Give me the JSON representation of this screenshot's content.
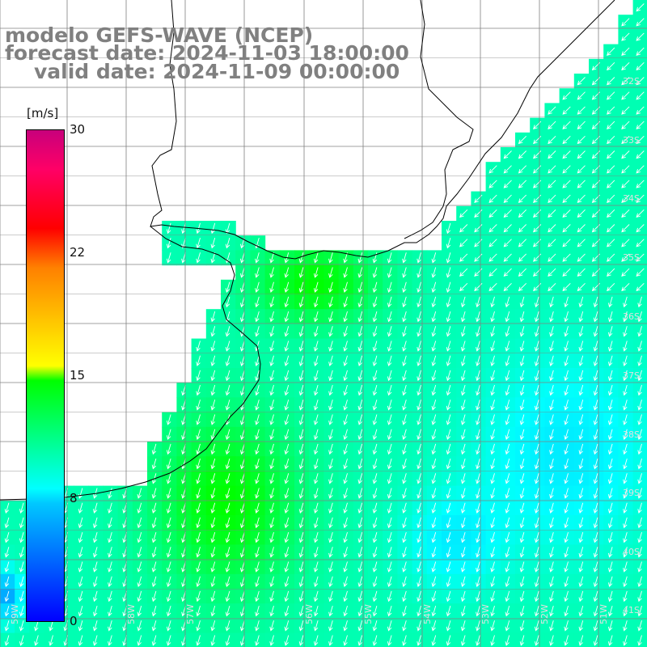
{
  "title": {
    "line1": "modelo GEFS-WAVE (NCEP)",
    "line2": "forecast date: 2024-11-03 18:00:00",
    "line3": "valid date: 2024-11-09 00:00:00"
  },
  "colorbar": {
    "unit": "[m/s]",
    "ticks": [
      "30",
      "22",
      "15",
      "8",
      "0"
    ],
    "tick_values": [
      30,
      22,
      15,
      8,
      0
    ],
    "colors": [
      "#0000ff",
      "#00c8ff",
      "#00ffff",
      "#00ff00",
      "#ffff00",
      "#ff8000",
      "#ff0000",
      "#ff0066",
      "#c8007c"
    ]
  },
  "map": {
    "lat_labels": [
      "32S",
      "33S",
      "34S",
      "35S",
      "36S",
      "37S",
      "38S",
      "39S",
      "40S",
      "41S"
    ],
    "lon_labels": [
      "59W",
      "58W",
      "57W",
      "56W",
      "55W",
      "54W",
      "53W",
      "52W",
      "51W"
    ],
    "land_color": "#ffffff",
    "coastline_color": "#000000",
    "grid_color": "#808080",
    "arrow_color": "#ffffff"
  }
}
